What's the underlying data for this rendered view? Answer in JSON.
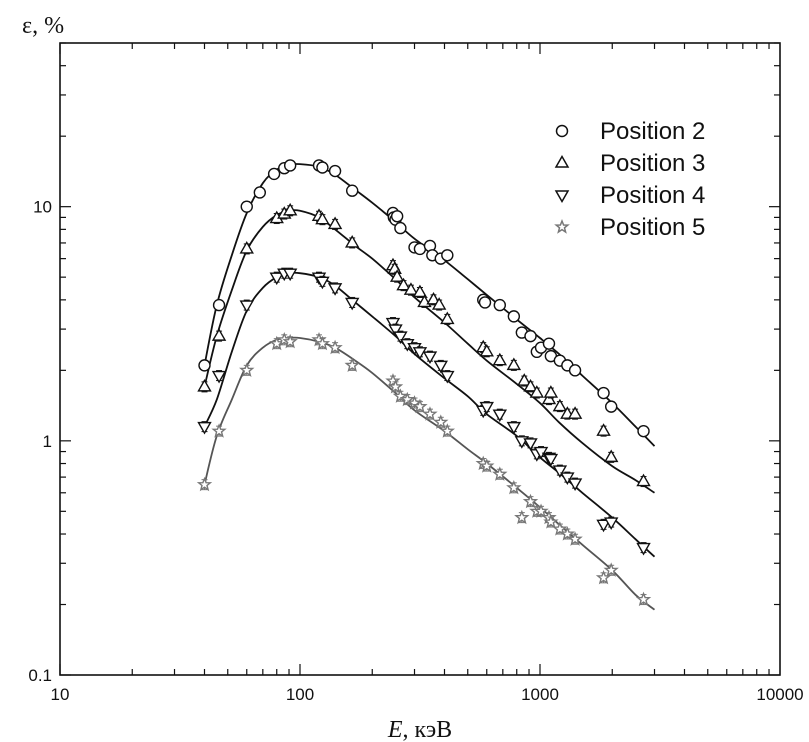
{
  "chart_data": {
    "type": "scatter",
    "xlabel_italic": "E",
    "xlabel_rest": ", кэВ",
    "ylabel": "ε, %",
    "xscale": "log",
    "yscale": "log",
    "xlim": [
      10,
      10000
    ],
    "ylim": [
      0.1,
      50
    ],
    "x_ticks": [
      10,
      100,
      1000,
      10000
    ],
    "x_tick_labels": [
      "10",
      "100",
      "1000",
      "10000"
    ],
    "y_ticks": [
      0.1,
      1,
      10
    ],
    "y_tick_labels": [
      "0.1",
      "1",
      "10"
    ],
    "grid": false,
    "legend_position": "top-right",
    "series": [
      {
        "name": "Position 2",
        "marker": "circle",
        "fit": [
          [
            40,
            2.1
          ],
          [
            45,
            3.8
          ],
          [
            52,
            6.2
          ],
          [
            60,
            9.4
          ],
          [
            70,
            12.6
          ],
          [
            80,
            14.4
          ],
          [
            90,
            15.1
          ],
          [
            100,
            15.2
          ],
          [
            120,
            14.8
          ],
          [
            140,
            13.7
          ],
          [
            170,
            11.8
          ],
          [
            200,
            10.4
          ],
          [
            250,
            8.6
          ],
          [
            300,
            7.3
          ],
          [
            400,
            5.9
          ],
          [
            500,
            4.9
          ],
          [
            600,
            4.2
          ],
          [
            800,
            3.3
          ],
          [
            1000,
            2.75
          ],
          [
            1200,
            2.35
          ],
          [
            1500,
            1.9
          ],
          [
            2000,
            1.45
          ],
          [
            2500,
            1.15
          ],
          [
            3000,
            0.95
          ]
        ],
        "points": [
          [
            40,
            2.1
          ],
          [
            46,
            3.8
          ],
          [
            60,
            10.0
          ],
          [
            68,
            11.5
          ],
          [
            78,
            13.8
          ],
          [
            86,
            14.6
          ],
          [
            91,
            15.0
          ],
          [
            120,
            15.0
          ],
          [
            124,
            14.7
          ],
          [
            140,
            14.2
          ],
          [
            165,
            11.7
          ],
          [
            244,
            9.4
          ],
          [
            246,
            9.0
          ],
          [
            250,
            8.8
          ],
          [
            254,
            9.1
          ],
          [
            262,
            8.1
          ],
          [
            300,
            6.7
          ],
          [
            316,
            6.6
          ],
          [
            348,
            6.8
          ],
          [
            356,
            6.2
          ],
          [
            386,
            6.0
          ],
          [
            411,
            6.2
          ],
          [
            580,
            4.0
          ],
          [
            590,
            3.9
          ],
          [
            680,
            3.8
          ],
          [
            778,
            3.4
          ],
          [
            840,
            2.9
          ],
          [
            913,
            2.8
          ],
          [
            970,
            2.4
          ],
          [
            1010,
            2.5
          ],
          [
            1090,
            2.6
          ],
          [
            1110,
            2.3
          ],
          [
            1210,
            2.2
          ],
          [
            1300,
            2.1
          ],
          [
            1400,
            2.0
          ],
          [
            1840,
            1.6
          ],
          [
            1980,
            1.4
          ],
          [
            2700,
            1.1
          ]
        ]
      },
      {
        "name": "Position 3",
        "marker": "triangle-up",
        "fit": [
          [
            40,
            1.7
          ],
          [
            45,
            2.8
          ],
          [
            52,
            4.4
          ],
          [
            60,
            6.5
          ],
          [
            70,
            8.2
          ],
          [
            80,
            9.2
          ],
          [
            90,
            9.6
          ],
          [
            100,
            9.6
          ],
          [
            120,
            9.0
          ],
          [
            140,
            8.0
          ],
          [
            170,
            6.8
          ],
          [
            200,
            6.0
          ],
          [
            250,
            4.9
          ],
          [
            300,
            4.1
          ],
          [
            400,
            3.2
          ],
          [
            500,
            2.6
          ],
          [
            600,
            2.2
          ],
          [
            800,
            1.75
          ],
          [
            1000,
            1.45
          ],
          [
            1200,
            1.2
          ],
          [
            1500,
            0.98
          ],
          [
            2000,
            0.78
          ],
          [
            2500,
            0.68
          ],
          [
            3000,
            0.6
          ]
        ],
        "points": [
          [
            40,
            1.7
          ],
          [
            46,
            2.8
          ],
          [
            60,
            6.6
          ],
          [
            80,
            8.9
          ],
          [
            86,
            9.3
          ],
          [
            91,
            9.6
          ],
          [
            120,
            9.1
          ],
          [
            124,
            8.8
          ],
          [
            140,
            8.4
          ],
          [
            165,
            7.0
          ],
          [
            244,
            5.6
          ],
          [
            248,
            5.4
          ],
          [
            254,
            5.0
          ],
          [
            270,
            4.6
          ],
          [
            290,
            4.4
          ],
          [
            316,
            4.3
          ],
          [
            330,
            3.9
          ],
          [
            360,
            4.0
          ],
          [
            380,
            3.8
          ],
          [
            411,
            3.3
          ],
          [
            580,
            2.5
          ],
          [
            600,
            2.4
          ],
          [
            680,
            2.2
          ],
          [
            778,
            2.1
          ],
          [
            860,
            1.8
          ],
          [
            913,
            1.7
          ],
          [
            970,
            1.6
          ],
          [
            1090,
            1.5
          ],
          [
            1110,
            1.6
          ],
          [
            1210,
            1.4
          ],
          [
            1300,
            1.3
          ],
          [
            1400,
            1.3
          ],
          [
            1840,
            1.1
          ],
          [
            1980,
            0.85
          ],
          [
            2700,
            0.67
          ]
        ]
      },
      {
        "name": "Position 4",
        "marker": "triangle-down",
        "fit": [
          [
            40,
            1.15
          ],
          [
            45,
            1.5
          ],
          [
            52,
            2.4
          ],
          [
            60,
            3.6
          ],
          [
            70,
            4.5
          ],
          [
            80,
            5.0
          ],
          [
            90,
            5.2
          ],
          [
            100,
            5.2
          ],
          [
            120,
            5.0
          ],
          [
            140,
            4.6
          ],
          [
            170,
            3.9
          ],
          [
            200,
            3.4
          ],
          [
            250,
            2.8
          ],
          [
            300,
            2.35
          ],
          [
            400,
            1.85
          ],
          [
            500,
            1.55
          ],
          [
            600,
            1.3
          ],
          [
            800,
            1.05
          ],
          [
            1000,
            0.85
          ],
          [
            1200,
            0.73
          ],
          [
            1500,
            0.6
          ],
          [
            2000,
            0.47
          ],
          [
            2500,
            0.38
          ],
          [
            3000,
            0.32
          ]
        ],
        "points": [
          [
            40,
            1.15
          ],
          [
            46,
            1.9
          ],
          [
            60,
            3.8
          ],
          [
            80,
            5.0
          ],
          [
            86,
            5.2
          ],
          [
            91,
            5.2
          ],
          [
            120,
            5.0
          ],
          [
            124,
            4.8
          ],
          [
            140,
            4.5
          ],
          [
            165,
            3.9
          ],
          [
            244,
            3.2
          ],
          [
            250,
            3.0
          ],
          [
            262,
            2.8
          ],
          [
            280,
            2.6
          ],
          [
            300,
            2.5
          ],
          [
            316,
            2.4
          ],
          [
            348,
            2.3
          ],
          [
            386,
            2.1
          ],
          [
            411,
            1.9
          ],
          [
            580,
            1.35
          ],
          [
            600,
            1.4
          ],
          [
            680,
            1.3
          ],
          [
            778,
            1.15
          ],
          [
            840,
            1.0
          ],
          [
            913,
            0.98
          ],
          [
            970,
            0.88
          ],
          [
            1010,
            0.9
          ],
          [
            1090,
            0.85
          ],
          [
            1110,
            0.84
          ],
          [
            1210,
            0.75
          ],
          [
            1300,
            0.7
          ],
          [
            1400,
            0.66
          ],
          [
            1840,
            0.44
          ],
          [
            1980,
            0.45
          ],
          [
            2700,
            0.35
          ]
        ]
      },
      {
        "name": "Position 5",
        "marker": "star",
        "fit": [
          [
            40,
            0.65
          ],
          [
            45,
            1.05
          ],
          [
            52,
            1.5
          ],
          [
            60,
            2.1
          ],
          [
            70,
            2.5
          ],
          [
            80,
            2.7
          ],
          [
            90,
            2.75
          ],
          [
            100,
            2.75
          ],
          [
            120,
            2.65
          ],
          [
            140,
            2.5
          ],
          [
            170,
            2.2
          ],
          [
            200,
            1.95
          ],
          [
            250,
            1.6
          ],
          [
            300,
            1.35
          ],
          [
            400,
            1.1
          ],
          [
            500,
            0.92
          ],
          [
            600,
            0.8
          ],
          [
            800,
            0.63
          ],
          [
            1000,
            0.52
          ],
          [
            1200,
            0.44
          ],
          [
            1500,
            0.36
          ],
          [
            2000,
            0.28
          ],
          [
            2500,
            0.22
          ],
          [
            3000,
            0.19
          ]
        ],
        "points": [
          [
            40,
            0.65
          ],
          [
            46,
            1.1
          ],
          [
            60,
            2.0
          ],
          [
            80,
            2.6
          ],
          [
            86,
            2.7
          ],
          [
            91,
            2.65
          ],
          [
            120,
            2.7
          ],
          [
            124,
            2.6
          ],
          [
            140,
            2.5
          ],
          [
            165,
            2.1
          ],
          [
            244,
            1.8
          ],
          [
            250,
            1.7
          ],
          [
            262,
            1.55
          ],
          [
            280,
            1.5
          ],
          [
            300,
            1.45
          ],
          [
            316,
            1.4
          ],
          [
            348,
            1.3
          ],
          [
            386,
            1.2
          ],
          [
            411,
            1.1
          ],
          [
            580,
            0.8
          ],
          [
            600,
            0.78
          ],
          [
            680,
            0.72
          ],
          [
            778,
            0.63
          ],
          [
            840,
            0.47
          ],
          [
            913,
            0.55
          ],
          [
            970,
            0.5
          ],
          [
            1010,
            0.5
          ],
          [
            1090,
            0.47
          ],
          [
            1110,
            0.45
          ],
          [
            1210,
            0.42
          ],
          [
            1300,
            0.4
          ],
          [
            1400,
            0.38
          ],
          [
            1840,
            0.26
          ],
          [
            1980,
            0.28
          ],
          [
            2700,
            0.21
          ]
        ]
      }
    ]
  }
}
